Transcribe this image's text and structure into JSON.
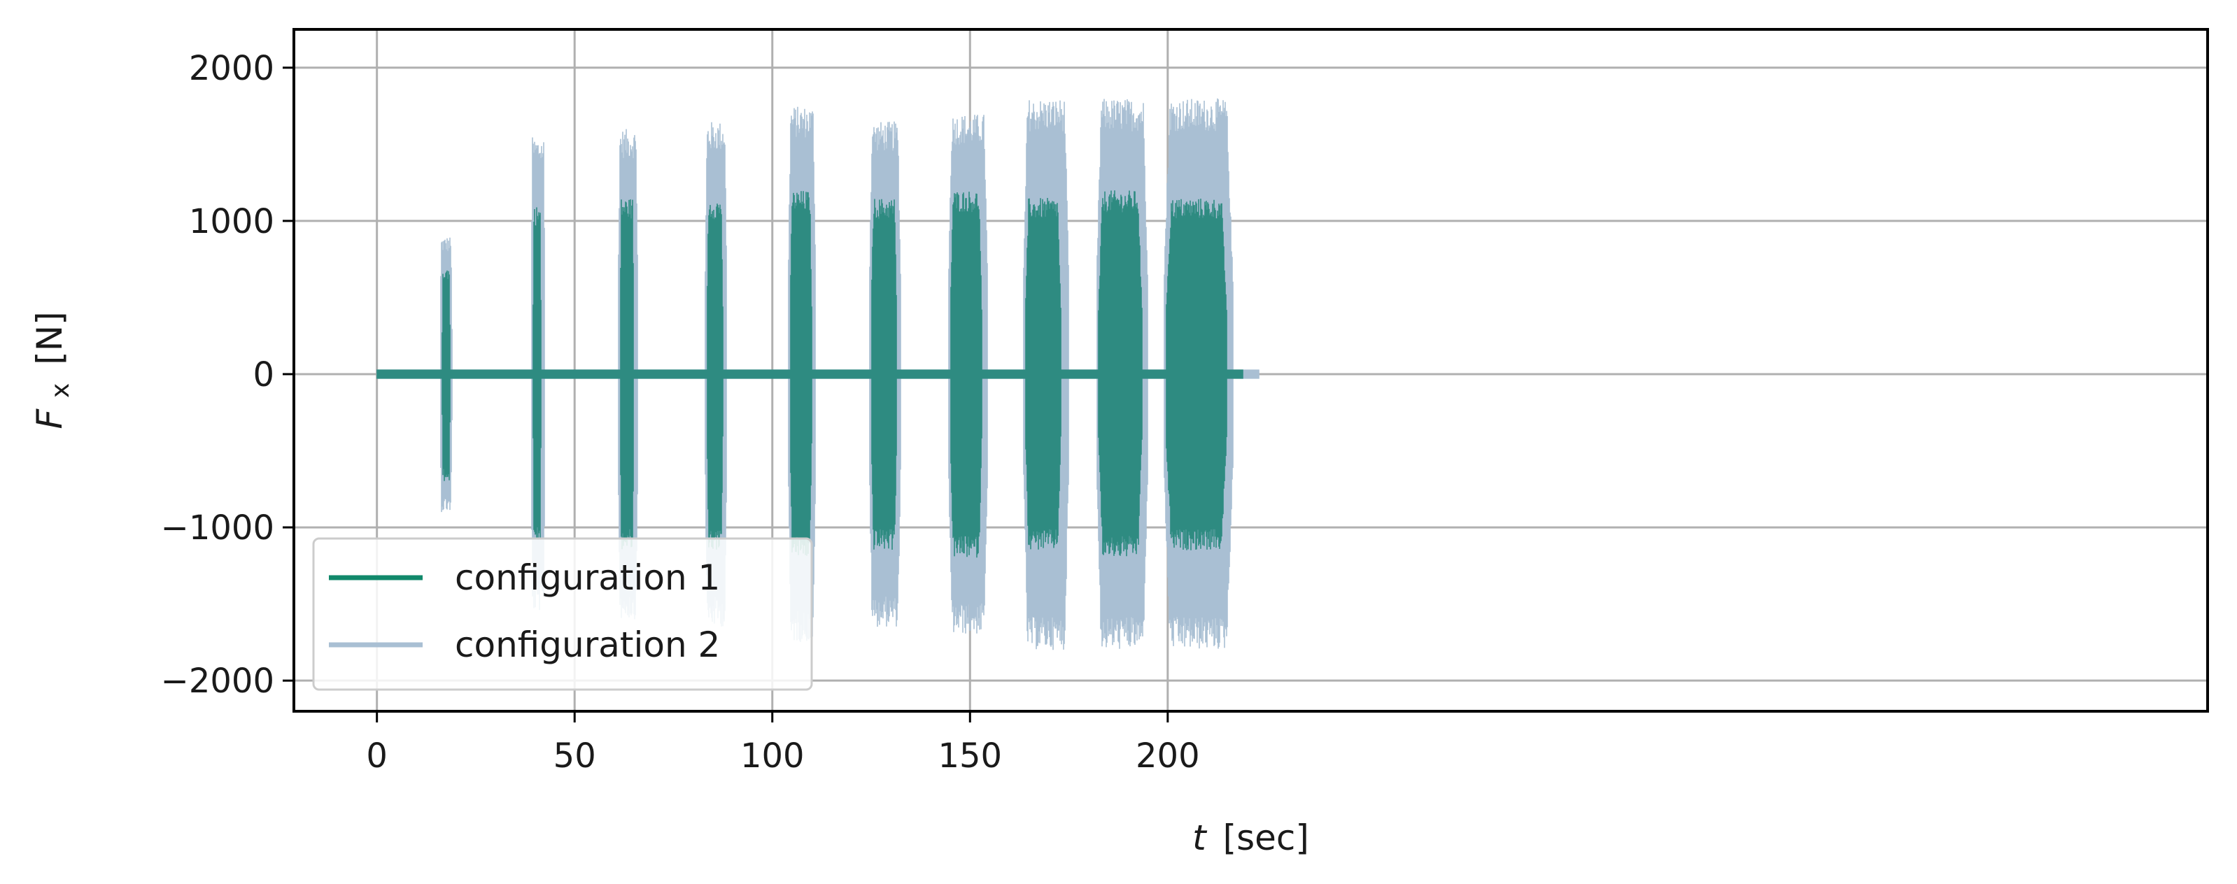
{
  "chart_data": {
    "type": "line",
    "title": "",
    "xlabel": "t [sec]",
    "xlabel_var": "t",
    "xlabel_unit": "[sec]",
    "ylabel": "Fx [N]",
    "ylabel_var": "F",
    "ylabel_sub": "x",
    "ylabel_unit": "[N]",
    "xlim": [
      -21,
      463
    ],
    "ylim": [
      -2200,
      2250
    ],
    "xticks": [
      0,
      50,
      100,
      150,
      200
    ],
    "yticks": [
      -2000,
      -1000,
      0,
      1000,
      2000
    ],
    "xtick_labels": [
      "0",
      "50",
      "100",
      "150",
      "200"
    ],
    "ytick_labels": [
      "−2000",
      "−1000",
      "0",
      "1000",
      "2000"
    ],
    "grid": true,
    "legend_position": "lower-left",
    "series": [
      {
        "name": "configuration 1",
        "color": "#2e8b81",
        "legend_color": "#11896b",
        "t_range": [
          0,
          219
        ],
        "baseline_amplitude": 30,
        "bursts": [
          {
            "t_start": 16.5,
            "t_end": 18.5,
            "amplitude": 700
          },
          {
            "t_start": 39.5,
            "t_end": 41.5,
            "amplitude": 1100
          },
          {
            "t_start": 61.5,
            "t_end": 65,
            "amplitude": 1150
          },
          {
            "t_start": 83.5,
            "t_end": 87.5,
            "amplitude": 1150
          },
          {
            "t_start": 104.5,
            "t_end": 110,
            "amplitude": 1200
          },
          {
            "t_start": 125,
            "t_end": 131.5,
            "amplitude": 1150
          },
          {
            "t_start": 145,
            "t_end": 153,
            "amplitude": 1200
          },
          {
            "t_start": 164,
            "t_end": 173,
            "amplitude": 1150
          },
          {
            "t_start": 182.5,
            "t_end": 193.5,
            "amplitude": 1200
          },
          {
            "t_start": 199.5,
            "t_end": 215,
            "amplitude": 1150
          }
        ]
      },
      {
        "name": "configuration 2",
        "color": "#a9bfd3",
        "legend_color": "#a9bfd3",
        "t_range": [
          0,
          223
        ],
        "baseline_amplitude": 30,
        "bursts": [
          {
            "t_start": 16,
            "t_end": 19,
            "amplitude": 900
          },
          {
            "t_start": 39,
            "t_end": 42.5,
            "amplitude": 1550
          },
          {
            "t_start": 61,
            "t_end": 66,
            "amplitude": 1600
          },
          {
            "t_start": 83,
            "t_end": 88.5,
            "amplitude": 1650
          },
          {
            "t_start": 104,
            "t_end": 111,
            "amplitude": 1750
          },
          {
            "t_start": 124.5,
            "t_end": 132.5,
            "amplitude": 1650
          },
          {
            "t_start": 144.5,
            "t_end": 154.5,
            "amplitude": 1700
          },
          {
            "t_start": 163.5,
            "t_end": 175,
            "amplitude": 1800
          },
          {
            "t_start": 182,
            "t_end": 195,
            "amplitude": 1800
          },
          {
            "t_start": 199,
            "t_end": 216.5,
            "amplitude": 1800
          }
        ]
      }
    ]
  }
}
